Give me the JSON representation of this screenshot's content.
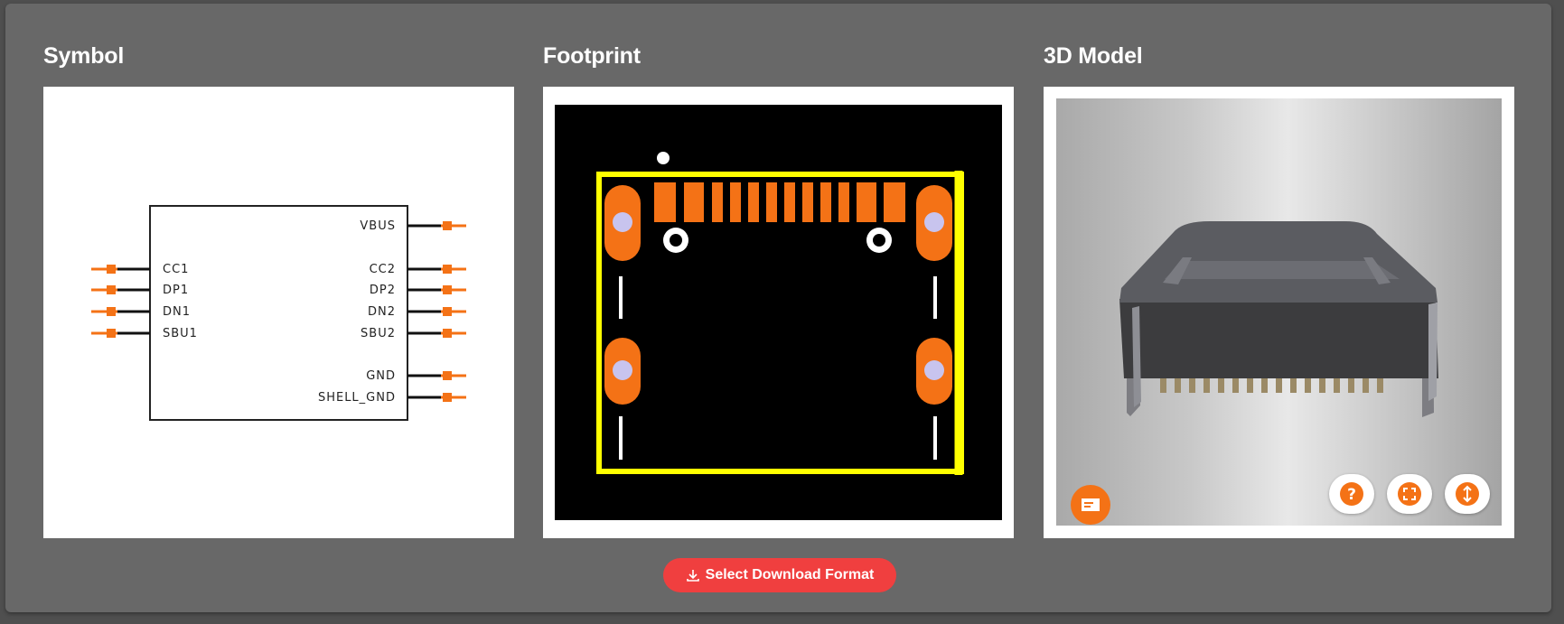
{
  "sections": {
    "symbol_title": "Symbol",
    "footprint_title": "Footprint",
    "model_title": "3D Model"
  },
  "symbol": {
    "left_pins": [
      "CC1",
      "DP1",
      "DN1",
      "SBU1"
    ],
    "right_pins": [
      "VBUS",
      "CC2",
      "DP2",
      "DN2",
      "SBU2",
      "GND",
      "SHELL_GND"
    ]
  },
  "model_viewer": {
    "buttons": [
      "help-icon",
      "fullscreen-icon",
      "vertical-resize-icon"
    ],
    "left_button": "model-viewer-icon"
  },
  "download_button": {
    "label": "Select Download Format",
    "icon": "download-icon"
  },
  "colors": {
    "accent_orange": "#f47216",
    "download_red": "#f03f3f",
    "silkscreen_yellow": "#ffff00",
    "pad_hole": "#c8c4ee"
  }
}
